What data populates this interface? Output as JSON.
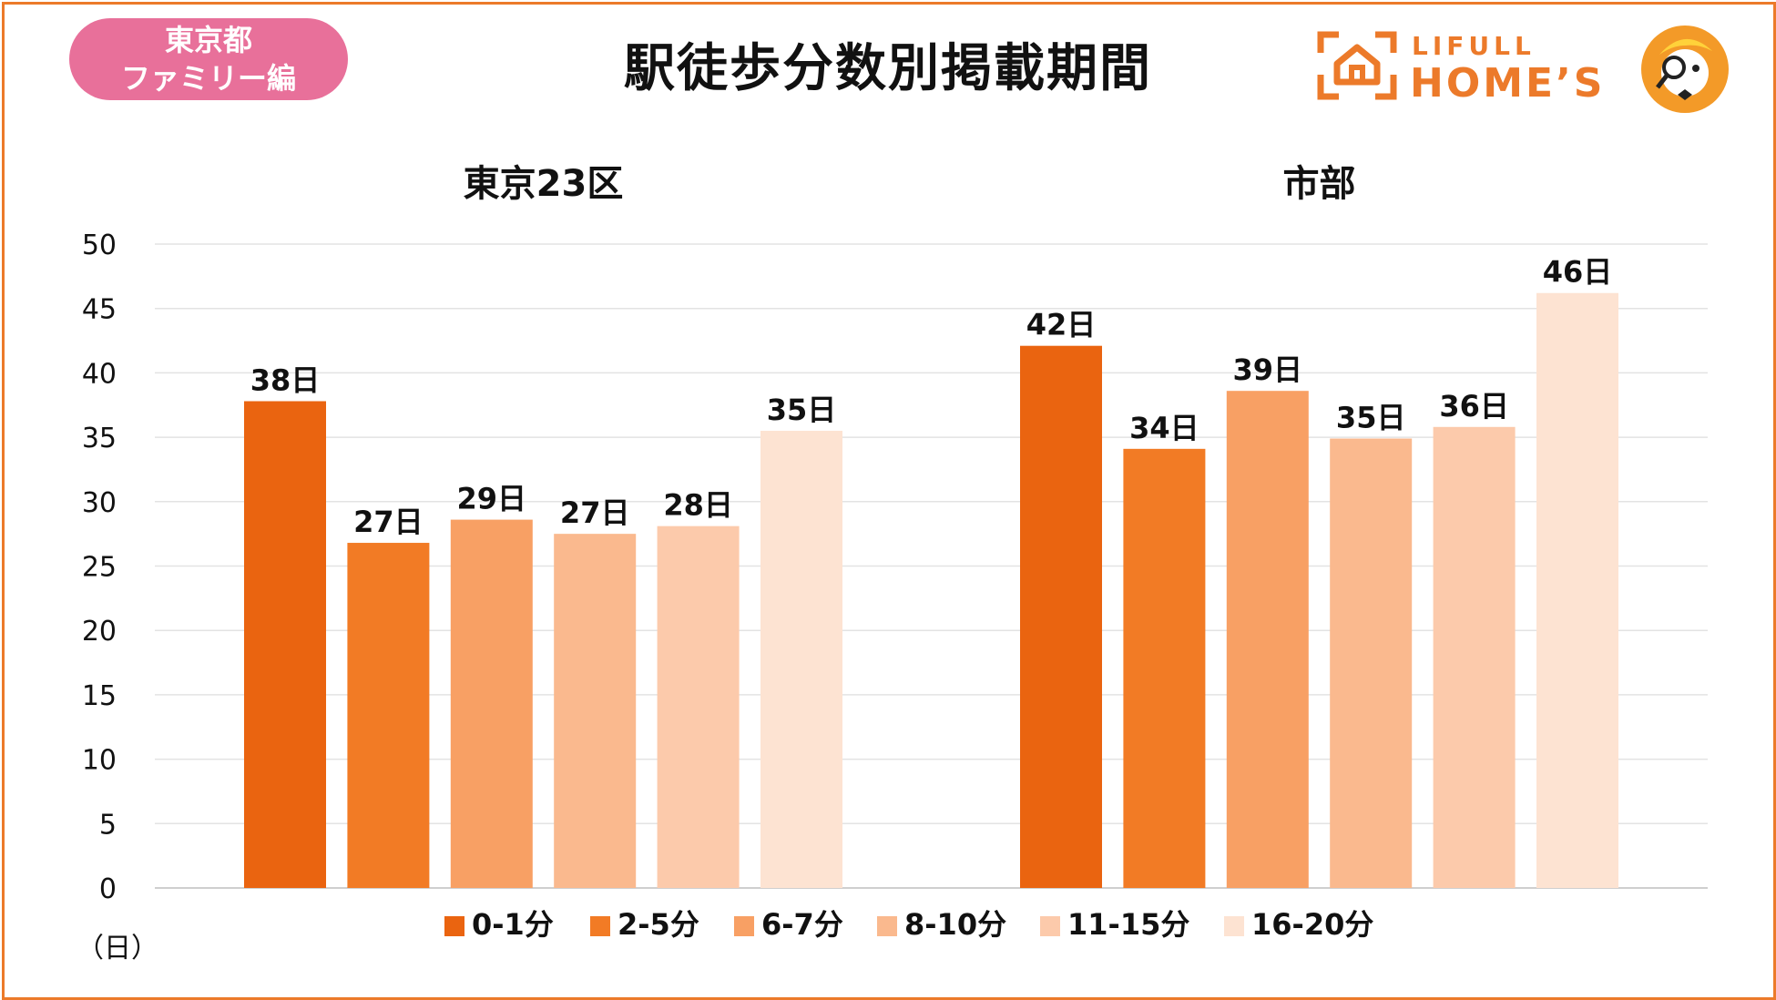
{
  "header": {
    "badge_line1": "東京都",
    "badge_line2": "ファミリー編",
    "title": "駅徒歩分数別掲載期間",
    "logo_small": "LIFULL",
    "logo_big": "HOME’S"
  },
  "colors": {
    "frame": "#ec7a2a",
    "badge": "#e8709a",
    "series": [
      "#ea6410",
      "#f27b25",
      "#f8a064",
      "#fab98e",
      "#fccaab",
      "#fde3d2"
    ]
  },
  "chart_data": {
    "type": "bar",
    "title": "駅徒歩分数別掲載期間",
    "categories": [
      "東京23区",
      "市部"
    ],
    "ylabel": "（日）",
    "ylim": [
      0,
      50
    ],
    "yticks": [
      0,
      5,
      10,
      15,
      20,
      25,
      30,
      35,
      40,
      45,
      50
    ],
    "grid": true,
    "legend_position": "bottom",
    "series": [
      {
        "name": "0-1分",
        "values": [
          37.8,
          42.1
        ],
        "labels": [
          "38日",
          "42日"
        ]
      },
      {
        "name": "2-5分",
        "values": [
          26.8,
          34.1
        ],
        "labels": [
          "27日",
          "34日"
        ]
      },
      {
        "name": "6-7分",
        "values": [
          28.6,
          38.6
        ],
        "labels": [
          "29日",
          "39日"
        ]
      },
      {
        "name": "8-10分",
        "values": [
          27.5,
          34.9
        ],
        "labels": [
          "27日",
          "35日"
        ]
      },
      {
        "name": "11-15分",
        "values": [
          28.1,
          35.8
        ],
        "labels": [
          "28日",
          "36日"
        ]
      },
      {
        "name": "16-20分",
        "values": [
          35.5,
          46.2
        ],
        "labels": [
          "35日",
          "46日"
        ]
      }
    ]
  }
}
